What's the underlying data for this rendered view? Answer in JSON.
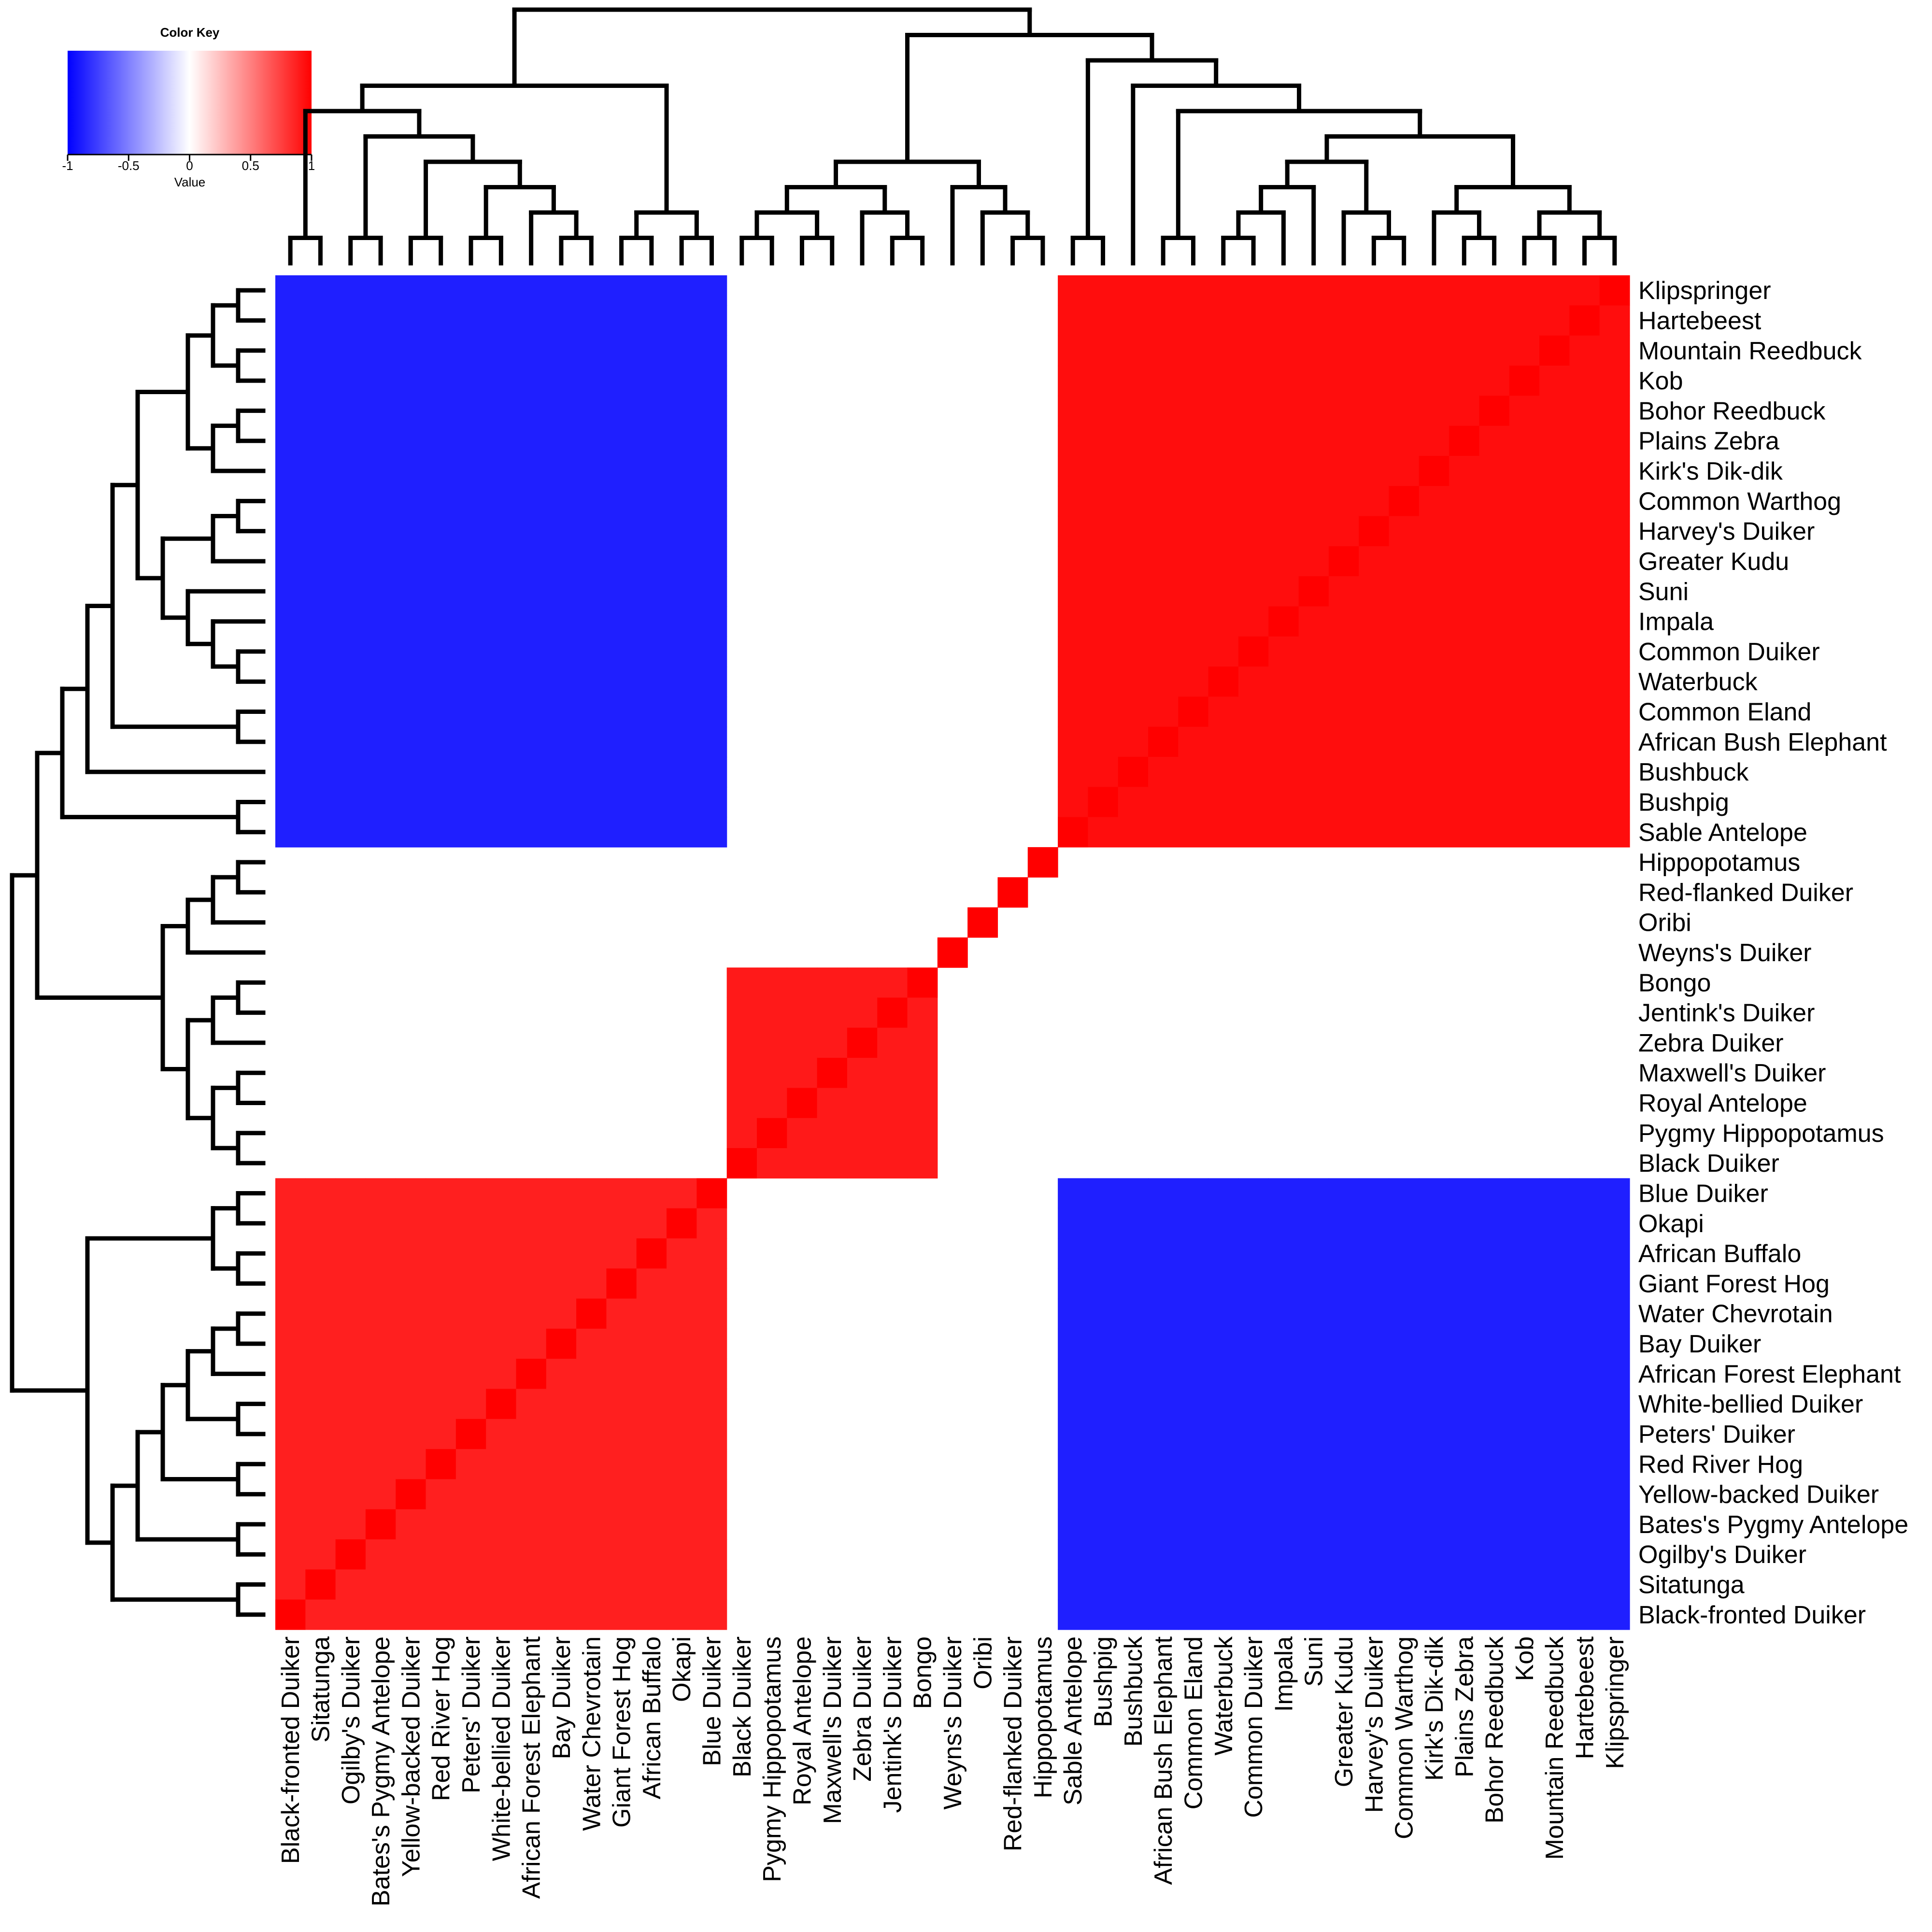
{
  "chart_data": {
    "type": "heatmap",
    "title": "",
    "color_key": {
      "title": "Color Key",
      "xlabel": "Value",
      "ticks": [
        -1,
        -0.5,
        0,
        0.5,
        1
      ],
      "tick_labels": [
        "-1",
        "-0.5",
        "0",
        "0.5",
        "1"
      ],
      "range": [
        -1,
        1
      ],
      "low_color": "#0000ff",
      "mid_color": "#ffffff",
      "high_color": "#ff0000"
    },
    "species_order": [
      "Black-fronted Duiker",
      "Sitatunga",
      "Ogilby's Duiker",
      "Bates's Pygmy Antelope",
      "Yellow-backed Duiker",
      "Red River Hog",
      "Peters' Duiker",
      "White-bellied Duiker",
      "African Forest Elephant",
      "Bay Duiker",
      "Water Chevrotain",
      "Giant Forest Hog",
      "African Buffalo",
      "Okapi",
      "Blue Duiker",
      "Black Duiker",
      "Pygmy Hippopotamus",
      "Royal Antelope",
      "Maxwell's Duiker",
      "Zebra Duiker",
      "Jentink's Duiker",
      "Bongo",
      "Weyns's Duiker",
      "Oribi",
      "Red-flanked Duiker",
      "Hippopotamus",
      "Sable Antelope",
      "Bushpig",
      "Bushbuck",
      "African Bush Elephant",
      "Common Eland",
      "Waterbuck",
      "Common Duiker",
      "Impala",
      "Suni",
      "Greater Kudu",
      "Harvey's Duiker",
      "Common Warthog",
      "Kirk's Dik-dik",
      "Plains Zebra",
      "Bohor Reedbuck",
      "Kob",
      "Mountain Reedbuck",
      "Hartebeest",
      "Klipspringer"
    ],
    "row_labels_top_to_bottom": [
      "Klipspringer",
      "Hartebeest",
      "Mountain Reedbuck",
      "Kob",
      "Bohor Reedbuck",
      "Plains Zebra",
      "Kirk's Dik-dik",
      "Common Warthog",
      "Harvey's Duiker",
      "Greater Kudu",
      "Suni",
      "Impala",
      "Common Duiker",
      "Waterbuck",
      "Common Eland",
      "African Bush Elephant",
      "Bushbuck",
      "Bushpig",
      "Sable Antelope",
      "Hippopotamus",
      "Red-flanked Duiker",
      "Oribi",
      "Weyns's Duiker",
      "Bongo",
      "Jentink's Duiker",
      "Zebra Duiker",
      "Maxwell's Duiker",
      "Royal Antelope",
      "Pygmy Hippopotamus",
      "Black Duiker",
      "Blue Duiker",
      "Okapi",
      "African Buffalo",
      "Giant Forest Hog",
      "Water Chevrotain",
      "Bay Duiker",
      "African Forest Elephant",
      "White-bellied Duiker",
      "Peters' Duiker",
      "Red River Hog",
      "Yellow-backed Duiker",
      "Bates's Pygmy Antelope",
      "Ogilby's Duiker",
      "Sitatunga",
      "Black-fronted Duiker"
    ],
    "column_labels_left_to_right": [
      "Black-fronted Duiker",
      "Sitatunga",
      "Ogilby's Duiker",
      "Bates's Pygmy Antelope",
      "Yellow-backed Duiker",
      "Red River Hog",
      "Peters' Duiker",
      "White-bellied Duiker",
      "African Forest Elephant",
      "Bay Duiker",
      "Water Chevrotain",
      "Giant Forest Hog",
      "African Buffalo",
      "Okapi",
      "Blue Duiker",
      "Black Duiker",
      "Pygmy Hippopotamus",
      "Royal Antelope",
      "Maxwell's Duiker",
      "Zebra Duiker",
      "Jentink's Duiker",
      "Bongo",
      "Weyns's Duiker",
      "Oribi",
      "Red-flanked Duiker",
      "Hippopotamus",
      "Sable Antelope",
      "Bushpig",
      "Bushbuck",
      "African Bush Elephant",
      "Common Eland",
      "Waterbuck",
      "Common Duiker",
      "Impala",
      "Suni",
      "Greater Kudu",
      "Harvey's Duiker",
      "Common Warthog",
      "Kirk's Dik-dik",
      "Plains Zebra",
      "Bohor Reedbuck",
      "Kob",
      "Mountain Reedbuck",
      "Hartebeest",
      "Klipspringer"
    ],
    "groups": {
      "savanna": [
        "Sable Antelope",
        "Bushpig",
        "Bushbuck",
        "African Bush Elephant",
        "Common Eland",
        "Waterbuck",
        "Common Duiker",
        "Impala",
        "Suni",
        "Greater Kudu",
        "Harvey's Duiker",
        "Common Warthog",
        "Kirk's Dik-dik",
        "Plains Zebra",
        "Bohor Reedbuck",
        "Kob",
        "Mountain Reedbuck",
        "Hartebeest",
        "Klipspringer"
      ],
      "central_forest": [
        "Black-fronted Duiker",
        "Sitatunga",
        "Ogilby's Duiker",
        "Bates's Pygmy Antelope",
        "Yellow-backed Duiker",
        "Red River Hog",
        "Peters' Duiker",
        "White-bellied Duiker",
        "African Forest Elephant",
        "Bay Duiker",
        "Water Chevrotain",
        "Giant Forest Hog",
        "African Buffalo",
        "Okapi",
        "Blue Duiker"
      ],
      "west_forest": [
        "Black Duiker",
        "Pygmy Hippopotamus",
        "Royal Antelope",
        "Maxwell's Duiker",
        "Zebra Duiker",
        "Jentink's Duiker",
        "Bongo"
      ],
      "isolates": [
        "Weyns's Duiker",
        "Oribi",
        "Red-flanked Duiker",
        "Hippopotamus"
      ]
    },
    "values": {
      "same_group_savanna": 0.95,
      "same_group_central_forest": 0.88,
      "same_group_west_forest": 0.9,
      "savanna_vs_central_forest": -0.88,
      "central_forest_vs_west_forest": 0,
      "savanna_vs_west_forest": 0,
      "diagonal": 1
    },
    "row_dendrogram": "(((((((((Klipspringer,Hartebeest),(Mountain Reedbuck,Kob)),((Bohor Reedbuck,Plains Zebra),Kirk's Dik-dik)),(((Common Warthog,Harvey's Duiker),Greater Kudu),(Suni,(Impala,(Common Duiker,Waterbuck))))),(Common Eland,African Bush Elephant)),Bushbuck),(Bushpig,Sable Antelope)),((((Hippopotamus,Red-flanked Duiker),Oribi),Weyns's Duiker),(((Bongo,Jentink's Duiker),Zebra Duiker),((Maxwell's Duiker,Royal Antelope),(Pygmy Hippopotamus,Black Duiker))))),(((Blue Duiker,Okapi),(African Buffalo,Giant Forest Hog)),((((((Water Chevrotain,Bay Duiker),African Forest Elephant),(White-bellied Duiker,Peters' Duiker)),(Red River Hog,Yellow-backed Duiker)),(Bates's Pygmy Antelope,Ogilby's Duiker)),(Sitatunga,Black-fronted Duiker))))"
  }
}
